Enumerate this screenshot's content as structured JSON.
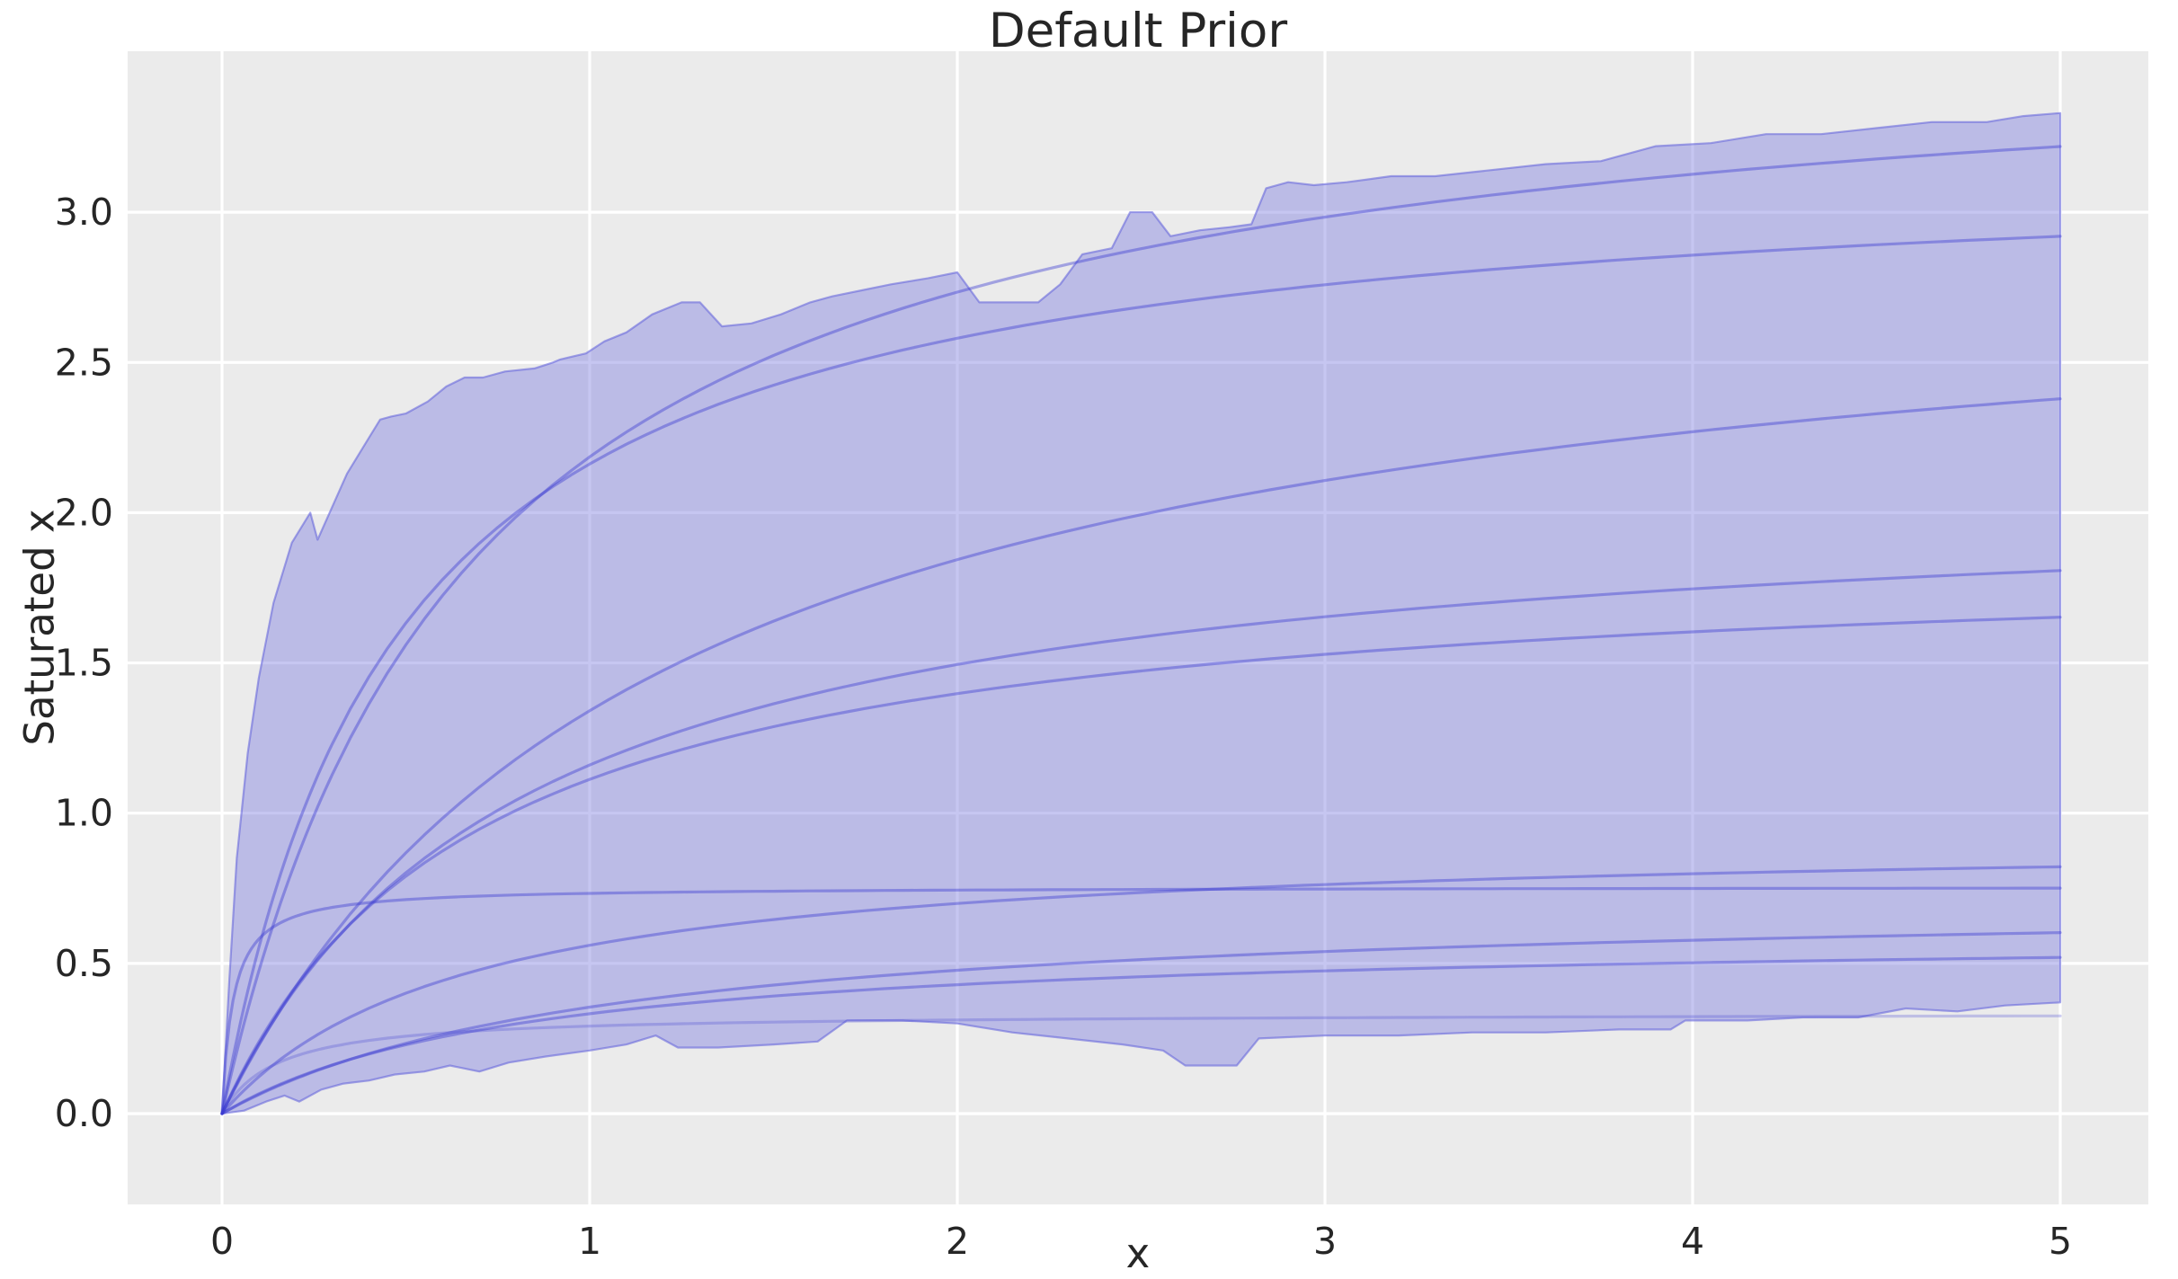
{
  "figure": {
    "background_color": "#ffffff",
    "text_color": "#262626"
  },
  "chart_data": {
    "type": "line",
    "title": "Default Prior",
    "xlabel": "x",
    "ylabel": "Saturated x",
    "x_ticks": [
      0,
      1,
      2,
      3,
      4,
      5
    ],
    "x_tick_labels": [
      "0",
      "1",
      "2",
      "3",
      "4",
      "5"
    ],
    "y_ticks": [
      0.0,
      0.5,
      1.0,
      1.5,
      2.0,
      2.5,
      3.0
    ],
    "y_tick_labels": [
      "0.0",
      "0.5",
      "1.0",
      "1.5",
      "2.0",
      "2.5",
      "3.0"
    ],
    "xlim": [
      -0.26,
      5.24
    ],
    "ylim": [
      -0.31,
      3.54
    ],
    "grid": "on",
    "gridline_color": "#ffffff",
    "plot_background": "#ebebeb",
    "line_color": "#3c3cd2",
    "band": {
      "description": "jagged prior-predictive envelope of saturation curves",
      "fill_color": "#8585e2",
      "fill_alpha": 0.47,
      "edge_color": "#5f5fda",
      "edge_alpha": 0.55,
      "upper_points": [
        [
          0,
          0
        ],
        [
          0.02,
          0.45
        ],
        [
          0.04,
          0.85
        ],
        [
          0.07,
          1.2
        ],
        [
          0.1,
          1.45
        ],
        [
          0.14,
          1.7
        ],
        [
          0.19,
          1.9
        ],
        [
          0.24,
          2.0
        ],
        [
          0.26,
          1.91
        ],
        [
          0.3,
          2.02
        ],
        [
          0.34,
          2.13
        ],
        [
          0.4,
          2.25
        ],
        [
          0.43,
          2.31
        ],
        [
          0.46,
          2.32
        ],
        [
          0.5,
          2.33
        ],
        [
          0.56,
          2.37
        ],
        [
          0.61,
          2.42
        ],
        [
          0.66,
          2.45
        ],
        [
          0.71,
          2.45
        ],
        [
          0.77,
          2.47
        ],
        [
          0.85,
          2.48
        ],
        [
          0.9,
          2.5
        ],
        [
          0.92,
          2.51
        ],
        [
          0.99,
          2.53
        ],
        [
          1.04,
          2.57
        ],
        [
          1.1,
          2.6
        ],
        [
          1.17,
          2.66
        ],
        [
          1.25,
          2.7
        ],
        [
          1.3,
          2.7
        ],
        [
          1.36,
          2.62
        ],
        [
          1.44,
          2.63
        ],
        [
          1.52,
          2.66
        ],
        [
          1.6,
          2.7
        ],
        [
          1.66,
          2.72
        ],
        [
          1.74,
          2.74
        ],
        [
          1.82,
          2.76
        ],
        [
          1.92,
          2.78
        ],
        [
          2.0,
          2.8
        ],
        [
          2.06,
          2.7
        ],
        [
          2.14,
          2.7
        ],
        [
          2.22,
          2.7
        ],
        [
          2.28,
          2.76
        ],
        [
          2.34,
          2.86
        ],
        [
          2.42,
          2.88
        ],
        [
          2.47,
          3.0
        ],
        [
          2.53,
          3.0
        ],
        [
          2.58,
          2.92
        ],
        [
          2.66,
          2.94
        ],
        [
          2.74,
          2.95
        ],
        [
          2.8,
          2.96
        ],
        [
          2.84,
          3.08
        ],
        [
          2.9,
          3.1
        ],
        [
          2.97,
          3.09
        ],
        [
          3.06,
          3.1
        ],
        [
          3.18,
          3.12
        ],
        [
          3.3,
          3.12
        ],
        [
          3.45,
          3.14
        ],
        [
          3.6,
          3.16
        ],
        [
          3.75,
          3.17
        ],
        [
          3.9,
          3.22
        ],
        [
          4.05,
          3.23
        ],
        [
          4.2,
          3.26
        ],
        [
          4.35,
          3.26
        ],
        [
          4.5,
          3.28
        ],
        [
          4.65,
          3.3
        ],
        [
          4.8,
          3.3
        ],
        [
          4.9,
          3.32
        ],
        [
          5,
          3.33
        ]
      ],
      "lower_points": [
        [
          0,
          0
        ],
        [
          0.06,
          0.01
        ],
        [
          0.12,
          0.04
        ],
        [
          0.17,
          0.06
        ],
        [
          0.21,
          0.04
        ],
        [
          0.27,
          0.08
        ],
        [
          0.33,
          0.1
        ],
        [
          0.4,
          0.11
        ],
        [
          0.47,
          0.13
        ],
        [
          0.55,
          0.14
        ],
        [
          0.62,
          0.16
        ],
        [
          0.7,
          0.14
        ],
        [
          0.78,
          0.17
        ],
        [
          0.88,
          0.19
        ],
        [
          1.0,
          0.21
        ],
        [
          1.1,
          0.23
        ],
        [
          1.18,
          0.26
        ],
        [
          1.24,
          0.22
        ],
        [
          1.35,
          0.22
        ],
        [
          1.5,
          0.23
        ],
        [
          1.62,
          0.24
        ],
        [
          1.7,
          0.31
        ],
        [
          1.85,
          0.31
        ],
        [
          2.0,
          0.3
        ],
        [
          2.15,
          0.27
        ],
        [
          2.3,
          0.25
        ],
        [
          2.45,
          0.23
        ],
        [
          2.56,
          0.21
        ],
        [
          2.62,
          0.16
        ],
        [
          2.76,
          0.16
        ],
        [
          2.82,
          0.25
        ],
        [
          3.0,
          0.26
        ],
        [
          3.2,
          0.26
        ],
        [
          3.4,
          0.27
        ],
        [
          3.6,
          0.27
        ],
        [
          3.8,
          0.28
        ],
        [
          3.94,
          0.28
        ],
        [
          3.98,
          0.31
        ],
        [
          4.15,
          0.31
        ],
        [
          4.3,
          0.32
        ],
        [
          4.45,
          0.32
        ],
        [
          4.58,
          0.35
        ],
        [
          4.72,
          0.34
        ],
        [
          4.85,
          0.36
        ],
        [
          5,
          0.37
        ]
      ]
    },
    "curves": [
      {
        "model": "y = a*x/(b+x)",
        "a": 3.65,
        "b": 0.67,
        "faint": false,
        "values_at_x_0_to_5": [
          0,
          2.19,
          2.73,
          2.98,
          3.13,
          3.22
        ]
      },
      {
        "model": "y = a*x/(b+x)",
        "a": 3.2,
        "b": 0.48,
        "faint": false,
        "values_at_x_0_to_5": [
          0,
          2.16,
          2.58,
          2.76,
          2.86,
          2.92
        ]
      },
      {
        "model": "y = a*x/(b+x)",
        "a": 2.95,
        "b": 1.2,
        "faint": false,
        "values_at_x_0_to_5": [
          0,
          1.34,
          1.84,
          2.11,
          2.27,
          2.38
        ]
      },
      {
        "model": "y = a*x/(b+x)",
        "a": 2.1,
        "b": 0.81,
        "faint": false,
        "values_at_x_0_to_5": [
          0,
          1.16,
          1.49,
          1.65,
          1.75,
          1.81
        ]
      },
      {
        "model": "y = a*x/(b+x)",
        "a": 1.88,
        "b": 0.69,
        "faint": false,
        "values_at_x_0_to_5": [
          0,
          1.11,
          1.4,
          1.53,
          1.6,
          1.65
        ]
      },
      {
        "model": "y = a*x/(b+x)",
        "a": 0.93,
        "b": 0.66,
        "faint": false,
        "values_at_x_0_to_5": [
          0,
          0.56,
          0.7,
          0.76,
          0.8,
          0.82
        ]
      },
      {
        "model": "y = a*x/(b+x)",
        "a": 0.755,
        "b": 0.03,
        "faint": false,
        "values_at_x_0_to_5": [
          0,
          0.73,
          0.74,
          0.75,
          0.75,
          0.75
        ]
      },
      {
        "model": "y = a*x/(b+x)",
        "a": 0.73,
        "b": 1.06,
        "faint": false,
        "values_at_x_0_to_5": [
          0,
          0.35,
          0.48,
          0.54,
          0.58,
          0.6
        ]
      },
      {
        "model": "y = a*x/(b+x)",
        "a": 0.605,
        "b": 0.82,
        "faint": false,
        "values_at_x_0_to_5": [
          0,
          0.33,
          0.43,
          0.48,
          0.5,
          0.52
        ]
      },
      {
        "model": "y = a*x/(b+x)",
        "a": 0.335,
        "b": 0.15,
        "faint": true,
        "values_at_x_0_to_5": [
          0,
          0.29,
          0.31,
          0.32,
          0.32,
          0.33
        ]
      }
    ]
  }
}
